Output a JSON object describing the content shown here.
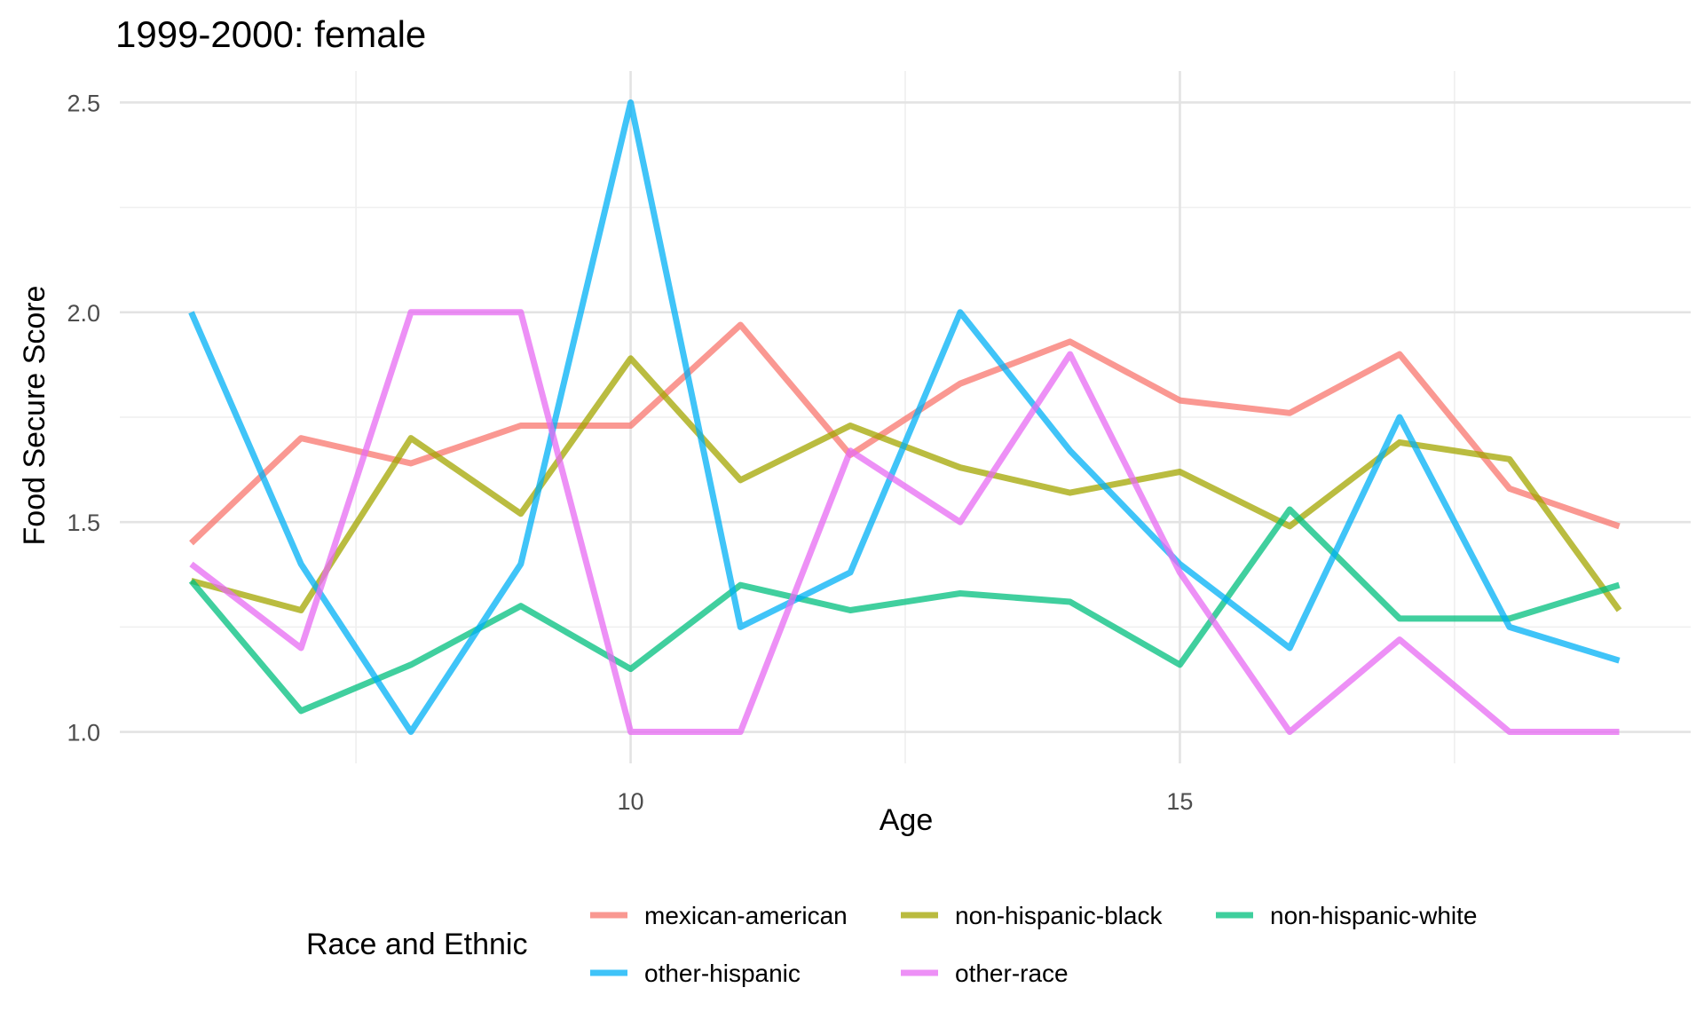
{
  "chart_data": {
    "type": "line",
    "title": "1999-2000: female",
    "xlabel": "Age",
    "ylabel": "Food Secure Score",
    "xlim": [
      5.35,
      19.65
    ],
    "ylim": [
      0.925,
      2.575
    ],
    "x_ticks": [
      10,
      15
    ],
    "x_tick_labels": [
      "10",
      "15"
    ],
    "y_ticks": [
      1.0,
      1.5,
      2.0,
      2.5
    ],
    "y_tick_labels": [
      "1.0",
      "1.5",
      "2.0",
      "2.5"
    ],
    "grid": true,
    "legend": {
      "title": "Race and Ethnic",
      "position": "bottom"
    },
    "x": [
      6,
      7,
      8,
      9,
      10,
      11,
      12,
      13,
      14,
      15,
      16,
      17,
      18,
      19
    ],
    "series": [
      {
        "name": "mexican-american",
        "color": "#F8766D",
        "values": [
          1.45,
          1.7,
          1.64,
          1.73,
          1.73,
          1.97,
          1.66,
          1.83,
          1.93,
          1.79,
          1.76,
          1.9,
          1.58,
          1.49
        ]
      },
      {
        "name": "non-hispanic-black",
        "color": "#A3A500",
        "values": [
          1.36,
          1.29,
          1.7,
          1.52,
          1.89,
          1.6,
          1.73,
          1.63,
          1.57,
          1.62,
          1.49,
          1.69,
          1.65,
          1.29
        ]
      },
      {
        "name": "non-hispanic-white",
        "color": "#00BF7D",
        "values": [
          1.36,
          1.05,
          1.16,
          1.3,
          1.15,
          1.35,
          1.29,
          1.33,
          1.31,
          1.16,
          1.53,
          1.27,
          1.27,
          1.35
        ]
      },
      {
        "name": "other-hispanic",
        "color": "#00B0F6",
        "values": [
          2.0,
          1.4,
          1.0,
          1.4,
          2.5,
          1.25,
          1.38,
          2.0,
          1.67,
          1.4,
          1.2,
          1.75,
          1.25,
          1.17
        ]
      },
      {
        "name": "other-race",
        "color": "#E76BF3",
        "values": [
          1.4,
          1.2,
          2.0,
          2.0,
          1.0,
          1.0,
          1.67,
          1.5,
          1.9,
          1.38,
          1.0,
          1.22,
          1.0,
          1.0
        ]
      }
    ]
  }
}
